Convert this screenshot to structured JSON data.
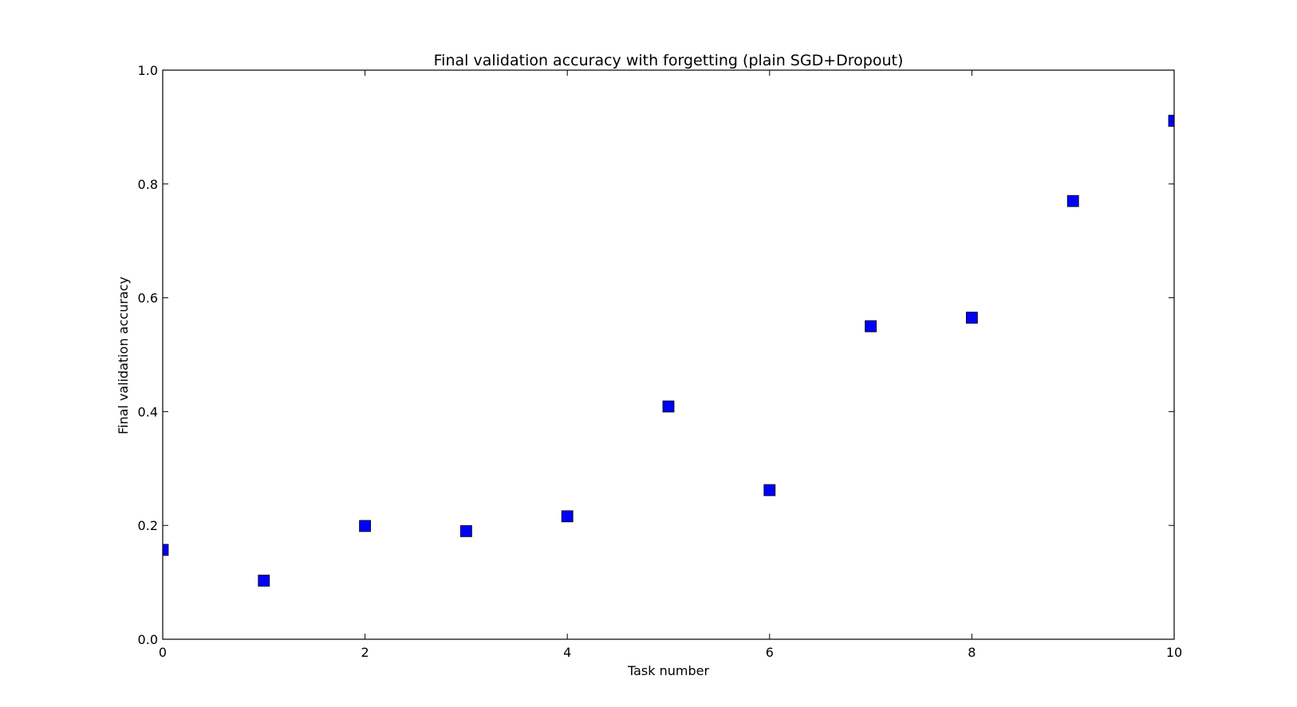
{
  "chart_data": {
    "type": "scatter",
    "title": "Final validation accuracy with forgetting (plain SGD+Dropout)",
    "xlabel": "Task number",
    "ylabel": "Final validation accuracy",
    "xlim": [
      0,
      10
    ],
    "ylim": [
      0.0,
      1.0
    ],
    "x_ticks": [
      0,
      2,
      4,
      6,
      8,
      10
    ],
    "x_tick_labels": [
      "0",
      "2",
      "4",
      "6",
      "8",
      "10"
    ],
    "y_ticks": [
      0.0,
      0.2,
      0.4,
      0.6,
      0.8,
      1.0
    ],
    "y_tick_labels": [
      "0.0",
      "0.2",
      "0.4",
      "0.6",
      "0.8",
      "1.0"
    ],
    "grid": false,
    "legend": "none",
    "marker": "square",
    "marker_color": "#0000ff",
    "x": [
      0,
      1,
      2,
      3,
      4,
      5,
      6,
      7,
      8,
      9,
      10
    ],
    "y": [
      0.157,
      0.103,
      0.199,
      0.19,
      0.216,
      0.409,
      0.262,
      0.55,
      0.565,
      0.77,
      0.911
    ]
  }
}
